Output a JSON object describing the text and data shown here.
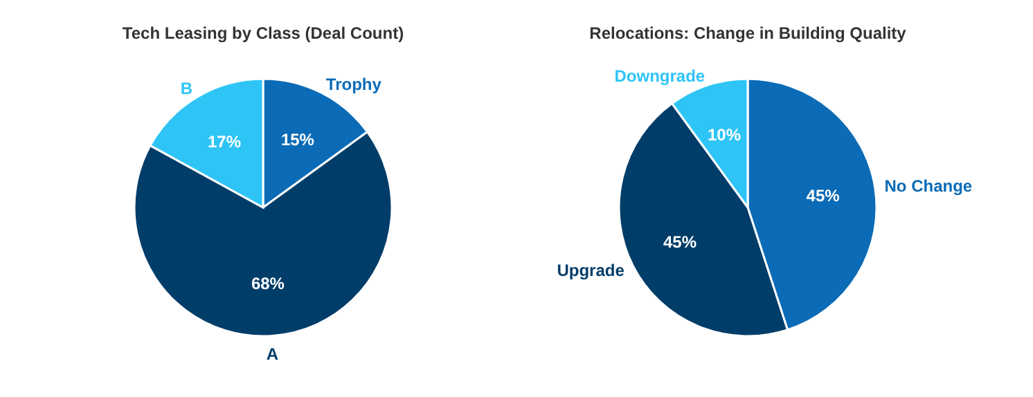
{
  "chart_data": [
    {
      "type": "pie",
      "title": "Tech Leasing by Class (Deal Count)",
      "categories": [
        "Trophy",
        "A",
        "B"
      ],
      "values": [
        15,
        68,
        17
      ],
      "colors": [
        "#0b6bb6",
        "#003d69",
        "#2ec5f6"
      ],
      "value_labels": [
        "15%",
        "68%",
        "17%"
      ],
      "legend": false
    },
    {
      "type": "pie",
      "title": "Relocations: Change in Building Quality",
      "categories": [
        "No Change",
        "Upgrade",
        "Downgrade"
      ],
      "values": [
        45,
        45,
        10
      ],
      "colors": [
        "#0b6bb6",
        "#003d69",
        "#2ec5f6"
      ],
      "value_labels": [
        "45%",
        "45%",
        "10%"
      ],
      "legend": false
    }
  ]
}
